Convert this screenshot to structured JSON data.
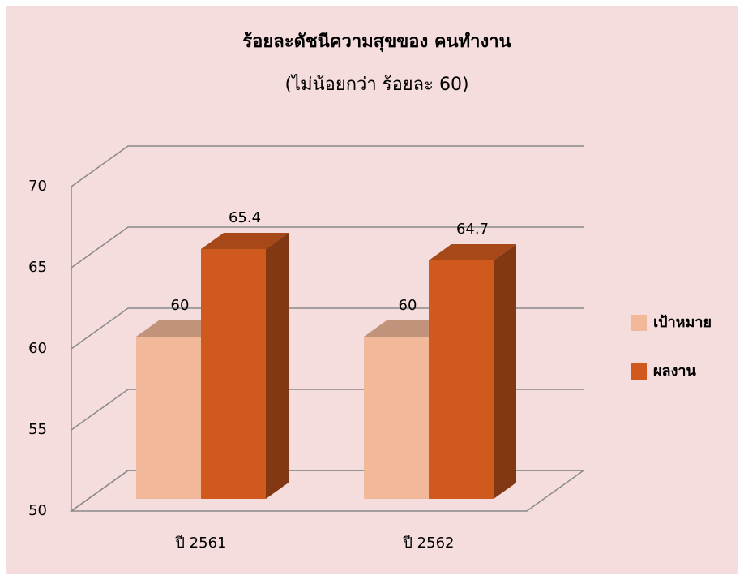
{
  "chart_data": {
    "type": "bar3d",
    "title": "ร้อยละดัชนีความสุขของ คนทำงาน",
    "subtitle": "(ไม่น้อยกว่า ร้อยละ 60)",
    "categories": [
      "ปี 2561",
      "ปี 2562"
    ],
    "series": [
      {
        "name": "เป้าหมาย",
        "color": "#f2b89a",
        "values": [
          60,
          60
        ]
      },
      {
        "name": "ผลงาน",
        "color": "#d05a1e",
        "values": [
          65.4,
          64.7
        ]
      }
    ],
    "ylim": [
      50,
      70
    ],
    "yticks": [
      50,
      55,
      60,
      65,
      70
    ],
    "grid": true,
    "legend": "right"
  }
}
